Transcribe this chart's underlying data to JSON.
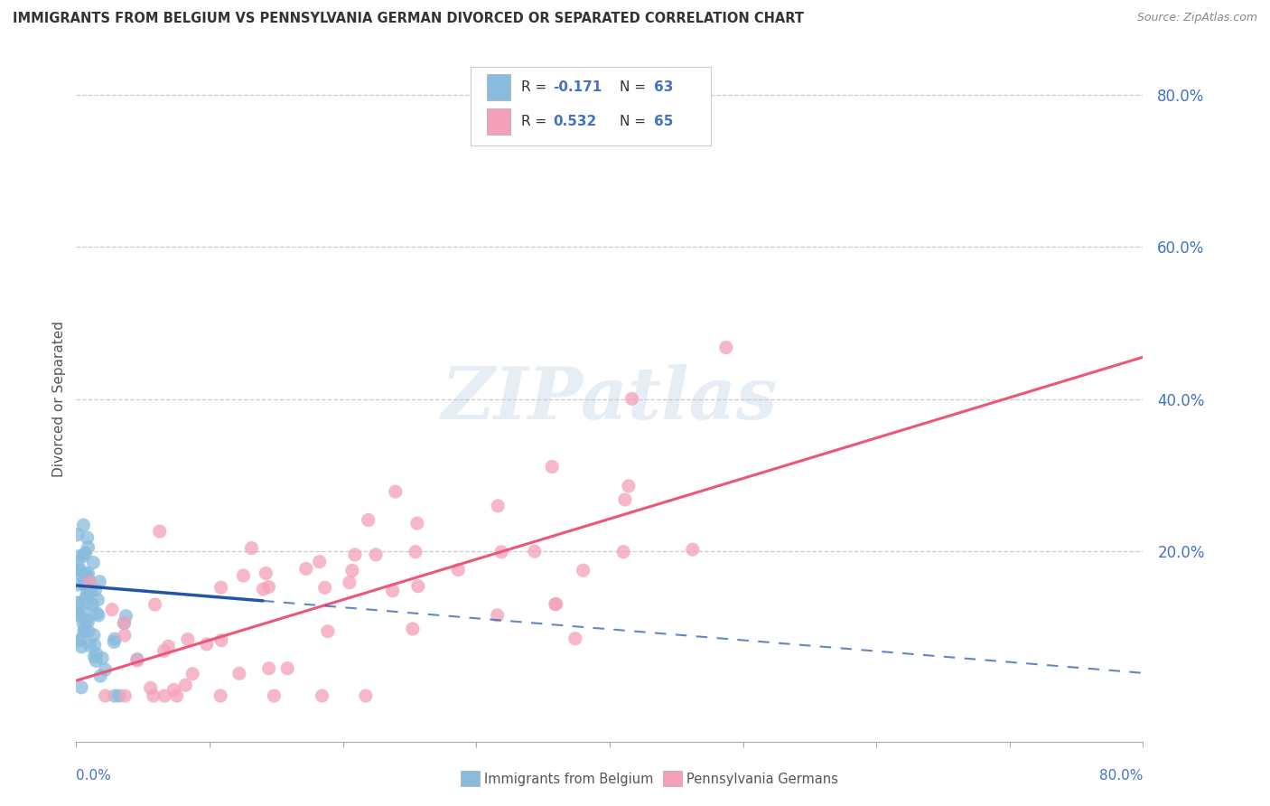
{
  "title": "IMMIGRANTS FROM BELGIUM VS PENNSYLVANIA GERMAN DIVORCED OR SEPARATED CORRELATION CHART",
  "source": "Source: ZipAtlas.com",
  "ylabel": "Divorced or Separated",
  "xlim": [
    0.0,
    0.8
  ],
  "ylim": [
    -0.05,
    0.85
  ],
  "ytick_values": [
    0.2,
    0.4,
    0.6,
    0.8
  ],
  "ytick_labels": [
    "20.0%",
    "40.0%",
    "60.0%",
    "80.0%"
  ],
  "color_blue": "#88bbdd",
  "color_pink": "#f4a0b8",
  "color_blue_line": "#2255aa",
  "color_pink_line": "#ee5577",
  "background_color": "#ffffff",
  "grid_color": "#cccccc",
  "watermark_color": "#b8cce4",
  "blue_R": -0.171,
  "blue_N": 63,
  "pink_R": 0.532,
  "pink_N": 65,
  "blue_line_x0": 0.0,
  "blue_line_x1": 0.8,
  "blue_line_y0": 0.155,
  "blue_line_y1": 0.04,
  "pink_line_x0": 0.0,
  "pink_line_x1": 0.8,
  "pink_line_y0": 0.03,
  "pink_line_y1": 0.455
}
